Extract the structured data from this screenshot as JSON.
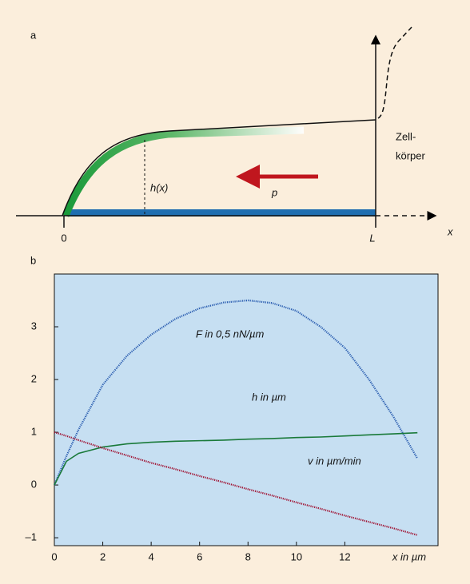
{
  "panel_a": {
    "label": "a",
    "cell_body": [
      "Zell-",
      "körper"
    ],
    "height_label": "h(x)",
    "force_label": "p",
    "origin_label": "0",
    "length_label": "L",
    "axis_label": "x"
  },
  "chart_data": {
    "type": "line",
    "label": "b",
    "x_label": "x in µm",
    "x": [
      0,
      0.5,
      1,
      2,
      3,
      4,
      5,
      6,
      7,
      8,
      9,
      10,
      11,
      12,
      13,
      14,
      15
    ],
    "series": [
      {
        "name": "F in 0,5 nN/µm",
        "color": "#2a5db0",
        "style": "dotted",
        "values": [
          0,
          0.55,
          1.05,
          1.9,
          2.45,
          2.85,
          3.15,
          3.35,
          3.46,
          3.5,
          3.45,
          3.3,
          3.0,
          2.6,
          2.0,
          1.3,
          0.5
        ]
      },
      {
        "name": "h in µm",
        "color": "#1a7a3a",
        "style": "solid",
        "values": [
          0,
          0.45,
          0.6,
          0.72,
          0.78,
          0.81,
          0.83,
          0.84,
          0.85,
          0.87,
          0.88,
          0.9,
          0.91,
          0.93,
          0.95,
          0.97,
          0.99
        ]
      },
      {
        "name": "v in µm/min",
        "color": "#a01030",
        "style": "dotted",
        "values": [
          1.0,
          0.93,
          0.85,
          0.7,
          0.56,
          0.42,
          0.3,
          0.17,
          0.05,
          -0.08,
          -0.2,
          -0.33,
          -0.45,
          -0.58,
          -0.7,
          -0.82,
          -0.95
        ]
      }
    ],
    "xlim": [
      0,
      15.85
    ],
    "ylim": [
      -1.15,
      4.0
    ],
    "xticks": [
      0,
      2,
      4,
      6,
      8,
      10,
      12
    ],
    "yticks": [
      {
        "value": -1,
        "label": "–1"
      },
      0,
      1,
      2,
      3
    ]
  }
}
